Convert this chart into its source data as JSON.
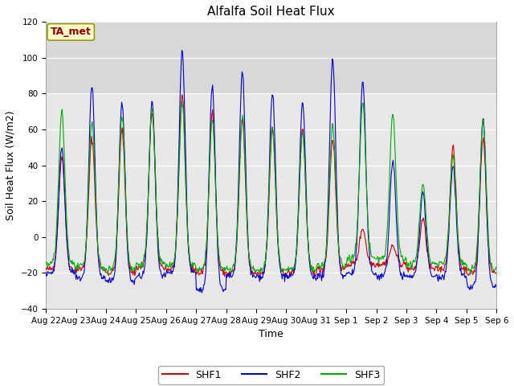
{
  "title": "Alfalfa Soil Heat Flux",
  "xlabel": "Time",
  "ylabel": "Soil Heat Flux (W/m2)",
  "ylim": [
    -40,
    120
  ],
  "yticks": [
    -40,
    -20,
    0,
    20,
    40,
    60,
    80,
    100,
    120
  ],
  "date_labels": [
    "Aug 22",
    "Aug 23",
    "Aug 24",
    "Aug 25",
    "Aug 26",
    "Aug 27",
    "Aug 28",
    "Aug 29",
    "Aug 30",
    "Aug 31",
    "Sep 1",
    "Sep 2",
    "Sep 3",
    "Sep 4",
    "Sep 5",
    "Sep 6"
  ],
  "colors": {
    "SHF1": "#cc0000",
    "SHF2": "#0000cc",
    "SHF3": "#00aa00"
  },
  "legend_label": "TA_met",
  "fig_bg_color": "#ffffff",
  "plot_bg_color": "#e8e8e8",
  "upper_band_color": "#d8d8d8",
  "n_days": 15,
  "pts_per_day": 48,
  "shf1_peaks": [
    45,
    55,
    60,
    70,
    80,
    70,
    65,
    60,
    60,
    55,
    5,
    -5,
    10,
    50,
    55
  ],
  "shf2_peaks": [
    50,
    85,
    75,
    75,
    104,
    84,
    92,
    80,
    75,
    100,
    87,
    42,
    25,
    40,
    65
  ],
  "shf3_peaks": [
    70,
    65,
    68,
    72,
    75,
    65,
    68,
    62,
    58,
    62,
    75,
    68,
    30,
    45,
    65
  ],
  "shf1_nights": [
    -18,
    -18,
    -20,
    -17,
    -18,
    -20,
    -20,
    -20,
    -20,
    -18,
    -15,
    -15,
    -18,
    -18,
    -20
  ],
  "shf2_nights": [
    -20,
    -23,
    -25,
    -22,
    -20,
    -30,
    -22,
    -22,
    -22,
    -22,
    -20,
    -22,
    -22,
    -22,
    -28
  ],
  "shf3_nights": [
    -15,
    -17,
    -18,
    -15,
    -16,
    -18,
    -18,
    -18,
    -18,
    -16,
    -12,
    -12,
    -15,
    -15,
    -18
  ]
}
